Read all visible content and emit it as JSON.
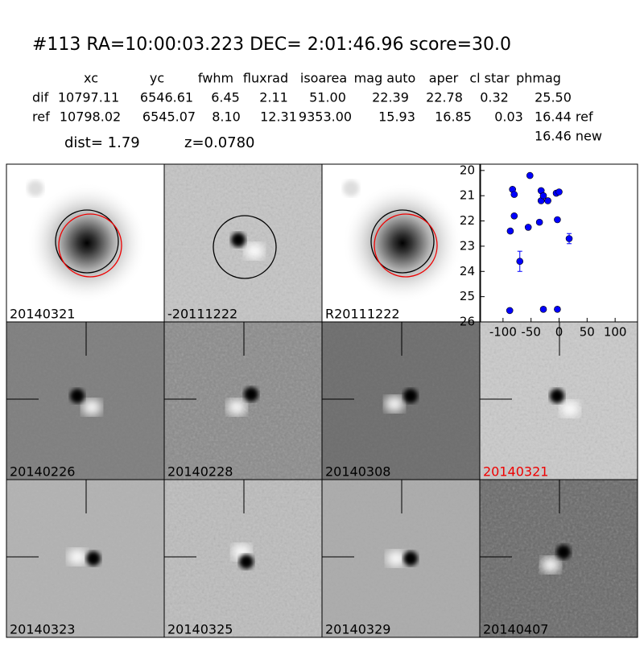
{
  "header": {
    "title": "#113   RA=10:00:03.223 DEC= 2:01:46.96       score=30.0",
    "table": {
      "columns": [
        "xc",
        "yc",
        "fwhm",
        "fluxrad",
        "isoarea",
        "mag auto",
        "aper",
        "cl star",
        "phmag"
      ],
      "rows": [
        [
          "dif",
          "10797.11",
          "6546.61",
          "6.45",
          "2.11",
          "51.00",
          "22.39",
          "22.78",
          "0.32",
          "25.50"
        ],
        [
          "ref",
          "10798.02",
          "6545.07",
          "8.10",
          "12.31",
          "9353.00",
          "15.93",
          "16.85",
          "0.03",
          "16.44 ref"
        ]
      ],
      "extra": "16.46 new"
    },
    "dist": "dist=  1.79",
    "z": "z=0.0780"
  },
  "panels": {
    "labels": [
      "20140321",
      "-20111222",
      "R20111222",
      "20140226",
      "20140228",
      "20140308",
      "20140321",
      "20140323",
      "20140325",
      "20140329",
      "20140407"
    ]
  },
  "chart_data": {
    "type": "scatter",
    "x": [
      -87,
      -83,
      -80,
      -80,
      -70,
      -52,
      -55,
      -35,
      -32,
      -32,
      -28,
      -20,
      -5,
      0,
      -3,
      18,
      -88,
      -28,
      -3
    ],
    "values": [
      22.4,
      20.75,
      20.95,
      21.8,
      23.6,
      20.2,
      22.25,
      22.05,
      20.8,
      21.2,
      21.0,
      21.2,
      20.9,
      20.85,
      21.95,
      22.7,
      25.55,
      25.5,
      25.5
    ],
    "errors": [
      0.05,
      0.05,
      0.05,
      0.05,
      0.4,
      0.05,
      0.05,
      0.05,
      0.05,
      0.05,
      0.05,
      0.05,
      0.05,
      0.05,
      0.05,
      0.2,
      0.05,
      0.05,
      0.05
    ],
    "color": "#0000ff",
    "xlim": [
      -140,
      140
    ],
    "ylim": [
      26,
      19.75
    ],
    "xticks": [
      -100,
      -50,
      0,
      50,
      100
    ],
    "yticks": [
      20,
      21,
      22,
      23,
      24,
      25,
      26
    ]
  }
}
